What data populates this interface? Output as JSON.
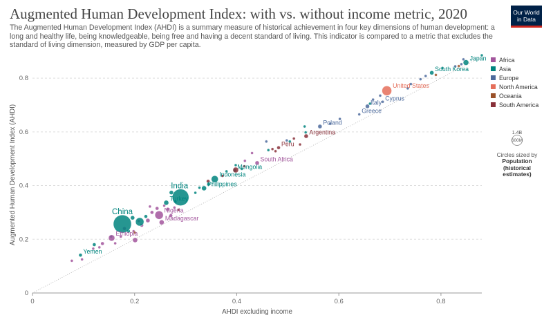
{
  "header": {
    "title": "Augmented Human Development Index: with vs. without income metric, 2020",
    "subtitle": "The Augmented Human Development Index (AHDI) is a summary measure of historical achievement in four key dimensions of human development: a long and healthy life, being knowledgeable, being free and having a decent standard of living. This indicator is compared to a metric that excludes the standard of living dimension, measured by GDP per capita.",
    "logo_line1": "Our World",
    "logo_line2": "in Data"
  },
  "legend": {
    "items": [
      {
        "label": "Africa",
        "color": "#a2559c"
      },
      {
        "label": "Asia",
        "color": "#00847e"
      },
      {
        "label": "Europe",
        "color": "#4c6a9c"
      },
      {
        "label": "North America",
        "color": "#e56e5a"
      },
      {
        "label": "Oceania",
        "color": "#9a5129"
      },
      {
        "label": "South America",
        "color": "#883039"
      }
    ],
    "size_key": {
      "max_label": "1.4B",
      "min_label": "600M",
      "caption": "Circles sized by",
      "bold_line1": "Population",
      "bold_line2": "(historical",
      "bold_line3": "estimates)"
    }
  },
  "chart_data": {
    "type": "scatter",
    "title": "Augmented Human Development Index: with vs. without income metric, 2020",
    "xlabel": "AHDI excluding income",
    "ylabel": "Augmented Human Development Index (AHDI)",
    "xlim": [
      0,
      0.88
    ],
    "ylim": [
      0,
      0.88
    ],
    "xticks": [
      0,
      0.2,
      0.4,
      0.6,
      0.8
    ],
    "yticks": [
      0.2,
      0.4,
      0.6,
      0.8
    ],
    "xtick_labels": [
      "0",
      "0.2",
      "0.4",
      "0.6",
      "0.8"
    ],
    "ytick_labels": [
      "0.2",
      "0.4",
      "0.6",
      "0.8"
    ],
    "y_zero_label": "0",
    "grid": "horizontal dashed",
    "reference_line": "y = x",
    "legend_placement": "right",
    "points": [
      {
        "x": 0.176,
        "y": 0.257,
        "region": "Asia",
        "r": 13,
        "label": "China"
      },
      {
        "x": 0.29,
        "y": 0.356,
        "region": "Asia",
        "r": 12,
        "label": "India"
      },
      {
        "x": 0.357,
        "y": 0.424,
        "region": "Asia",
        "r": 5,
        "label": "Indonesia"
      },
      {
        "x": 0.336,
        "y": 0.39,
        "region": "Asia",
        "r": 3.5,
        "label": "Philippines"
      },
      {
        "x": 0.262,
        "y": 0.336,
        "region": "Asia",
        "r": 3.5,
        "label": "Turkey"
      },
      {
        "x": 0.396,
        "y": 0.456,
        "region": "Asia",
        "r": 2.5,
        "label": "Mongolia"
      },
      {
        "x": 0.849,
        "y": 0.858,
        "region": "Asia",
        "r": 4,
        "label": "Japan"
      },
      {
        "x": 0.782,
        "y": 0.82,
        "region": "Asia",
        "r": 3,
        "label": "South Korea"
      },
      {
        "x": 0.094,
        "y": 0.141,
        "region": "Asia",
        "r": 2.5,
        "label": "Yemen"
      },
      {
        "x": 0.694,
        "y": 0.753,
        "region": "North America",
        "r": 7,
        "label": "United States"
      },
      {
        "x": 0.686,
        "y": 0.712,
        "region": "Europe",
        "r": 2,
        "label": "Cyprus"
      },
      {
        "x": 0.656,
        "y": 0.695,
        "region": "Europe",
        "r": 3,
        "label": "Italy"
      },
      {
        "x": 0.64,
        "y": 0.665,
        "region": "Europe",
        "r": 2,
        "label": "Greece"
      },
      {
        "x": 0.563,
        "y": 0.62,
        "region": "Europe",
        "r": 3,
        "label": "Poland"
      },
      {
        "x": 0.536,
        "y": 0.584,
        "region": "South America",
        "r": 3,
        "label": "Argentina"
      },
      {
        "x": 0.482,
        "y": 0.541,
        "region": "South America",
        "r": 2.5,
        "label": "Peru"
      },
      {
        "x": 0.44,
        "y": 0.484,
        "region": "Africa",
        "r": 3,
        "label": "South Africa"
      },
      {
        "x": 0.248,
        "y": 0.29,
        "region": "Africa",
        "r": 6,
        "label": "Nigeria"
      },
      {
        "x": 0.253,
        "y": 0.263,
        "region": "Africa",
        "r": 3.5,
        "label": "Madagascar"
      },
      {
        "x": 0.155,
        "y": 0.205,
        "region": "Africa",
        "r": 4.5,
        "label": "Ethiopia"
      },
      {
        "x": 0.201,
        "y": 0.197,
        "region": "Africa",
        "r": 3.5
      },
      {
        "x": 0.137,
        "y": 0.184,
        "region": "Africa",
        "r": 2.5
      },
      {
        "x": 0.119,
        "y": 0.165,
        "region": "Africa",
        "r": 2
      },
      {
        "x": 0.077,
        "y": 0.12,
        "region": "Africa",
        "r": 2
      },
      {
        "x": 0.097,
        "y": 0.125,
        "region": "Africa",
        "r": 2
      },
      {
        "x": 0.131,
        "y": 0.17,
        "region": "Africa",
        "r": 2
      },
      {
        "x": 0.162,
        "y": 0.185,
        "region": "Africa",
        "r": 2
      },
      {
        "x": 0.173,
        "y": 0.21,
        "region": "Africa",
        "r": 2
      },
      {
        "x": 0.18,
        "y": 0.24,
        "region": "Africa",
        "r": 2.5
      },
      {
        "x": 0.198,
        "y": 0.23,
        "region": "Africa",
        "r": 2
      },
      {
        "x": 0.214,
        "y": 0.252,
        "region": "Africa",
        "r": 2.5
      },
      {
        "x": 0.226,
        "y": 0.27,
        "region": "Africa",
        "r": 3
      },
      {
        "x": 0.234,
        "y": 0.3,
        "region": "Africa",
        "r": 2.5
      },
      {
        "x": 0.244,
        "y": 0.315,
        "region": "Africa",
        "r": 2.5
      },
      {
        "x": 0.265,
        "y": 0.312,
        "region": "Africa",
        "r": 2.5
      },
      {
        "x": 0.271,
        "y": 0.288,
        "region": "Africa",
        "r": 2.5
      },
      {
        "x": 0.258,
        "y": 0.325,
        "region": "Africa",
        "r": 2
      },
      {
        "x": 0.23,
        "y": 0.322,
        "region": "Africa",
        "r": 2
      },
      {
        "x": 0.208,
        "y": 0.268,
        "region": "Africa",
        "r": 2
      },
      {
        "x": 0.278,
        "y": 0.318,
        "region": "Africa",
        "r": 2
      },
      {
        "x": 0.416,
        "y": 0.492,
        "region": "Africa",
        "r": 2
      },
      {
        "x": 0.43,
        "y": 0.521,
        "region": "Africa",
        "r": 2
      },
      {
        "x": 0.21,
        "y": 0.265,
        "region": "Asia",
        "r": 6
      },
      {
        "x": 0.196,
        "y": 0.28,
        "region": "Asia",
        "r": 3
      },
      {
        "x": 0.222,
        "y": 0.285,
        "region": "Asia",
        "r": 2.5
      },
      {
        "x": 0.188,
        "y": 0.23,
        "region": "Asia",
        "r": 2.5
      },
      {
        "x": 0.154,
        "y": 0.21,
        "region": "Asia",
        "r": 2
      },
      {
        "x": 0.121,
        "y": 0.18,
        "region": "Asia",
        "r": 2.5
      },
      {
        "x": 0.272,
        "y": 0.374,
        "region": "Asia",
        "r": 3
      },
      {
        "x": 0.319,
        "y": 0.373,
        "region": "Asia",
        "r": 2
      },
      {
        "x": 0.327,
        "y": 0.392,
        "region": "Asia",
        "r": 2
      },
      {
        "x": 0.345,
        "y": 0.405,
        "region": "Asia",
        "r": 2.5
      },
      {
        "x": 0.38,
        "y": 0.453,
        "region": "Asia",
        "r": 2
      },
      {
        "x": 0.398,
        "y": 0.476,
        "region": "Asia",
        "r": 2
      },
      {
        "x": 0.41,
        "y": 0.462,
        "region": "Asia",
        "r": 2
      },
      {
        "x": 0.462,
        "y": 0.532,
        "region": "Asia",
        "r": 2
      },
      {
        "x": 0.504,
        "y": 0.564,
        "region": "Asia",
        "r": 2
      },
      {
        "x": 0.533,
        "y": 0.62,
        "region": "Asia",
        "r": 2
      },
      {
        "x": 0.535,
        "y": 0.598,
        "region": "Asia",
        "r": 2
      },
      {
        "x": 0.661,
        "y": 0.705,
        "region": "Asia",
        "r": 2
      },
      {
        "x": 0.803,
        "y": 0.838,
        "region": "Asia",
        "r": 2
      },
      {
        "x": 0.88,
        "y": 0.885,
        "region": "Asia",
        "r": 2
      },
      {
        "x": 0.28,
        "y": 0.34,
        "region": "Asia",
        "r": 2
      },
      {
        "x": 0.458,
        "y": 0.564,
        "region": "Europe",
        "r": 2
      },
      {
        "x": 0.498,
        "y": 0.568,
        "region": "Europe",
        "r": 2
      },
      {
        "x": 0.583,
        "y": 0.63,
        "region": "Europe",
        "r": 2
      },
      {
        "x": 0.602,
        "y": 0.648,
        "region": "Europe",
        "r": 2
      },
      {
        "x": 0.667,
        "y": 0.72,
        "region": "Europe",
        "r": 2
      },
      {
        "x": 0.681,
        "y": 0.735,
        "region": "Europe",
        "r": 2
      },
      {
        "x": 0.741,
        "y": 0.778,
        "region": "Europe",
        "r": 2
      },
      {
        "x": 0.76,
        "y": 0.796,
        "region": "Europe",
        "r": 2
      },
      {
        "x": 0.77,
        "y": 0.808,
        "region": "Europe",
        "r": 2
      },
      {
        "x": 0.828,
        "y": 0.844,
        "region": "Europe",
        "r": 2
      },
      {
        "x": 0.84,
        "y": 0.852,
        "region": "Europe",
        "r": 2
      },
      {
        "x": 0.844,
        "y": 0.87,
        "region": "Europe",
        "r": 2
      },
      {
        "x": 0.735,
        "y": 0.762,
        "region": "Europe",
        "r": 2
      },
      {
        "x": 0.79,
        "y": 0.812,
        "region": "Oceania",
        "r": 2
      },
      {
        "x": 0.835,
        "y": 0.845,
        "region": "Oceania",
        "r": 2
      },
      {
        "x": 0.2,
        "y": 0.225,
        "region": "Oceania",
        "r": 2
      },
      {
        "x": 0.398,
        "y": 0.458,
        "region": "South America",
        "r": 4
      },
      {
        "x": 0.344,
        "y": 0.416,
        "region": "South America",
        "r": 2.5
      },
      {
        "x": 0.47,
        "y": 0.536,
        "region": "South America",
        "r": 2
      },
      {
        "x": 0.512,
        "y": 0.575,
        "region": "South America",
        "r": 2
      },
      {
        "x": 0.524,
        "y": 0.553,
        "region": "South America",
        "r": 2
      },
      {
        "x": 0.415,
        "y": 0.472,
        "region": "South America",
        "r": 2
      },
      {
        "x": 0.372,
        "y": 0.436,
        "region": "South America",
        "r": 2
      },
      {
        "x": 0.286,
        "y": 0.31,
        "region": "South America",
        "r": 2
      },
      {
        "x": 0.476,
        "y": 0.528,
        "region": "South America",
        "r": 2
      }
    ]
  }
}
